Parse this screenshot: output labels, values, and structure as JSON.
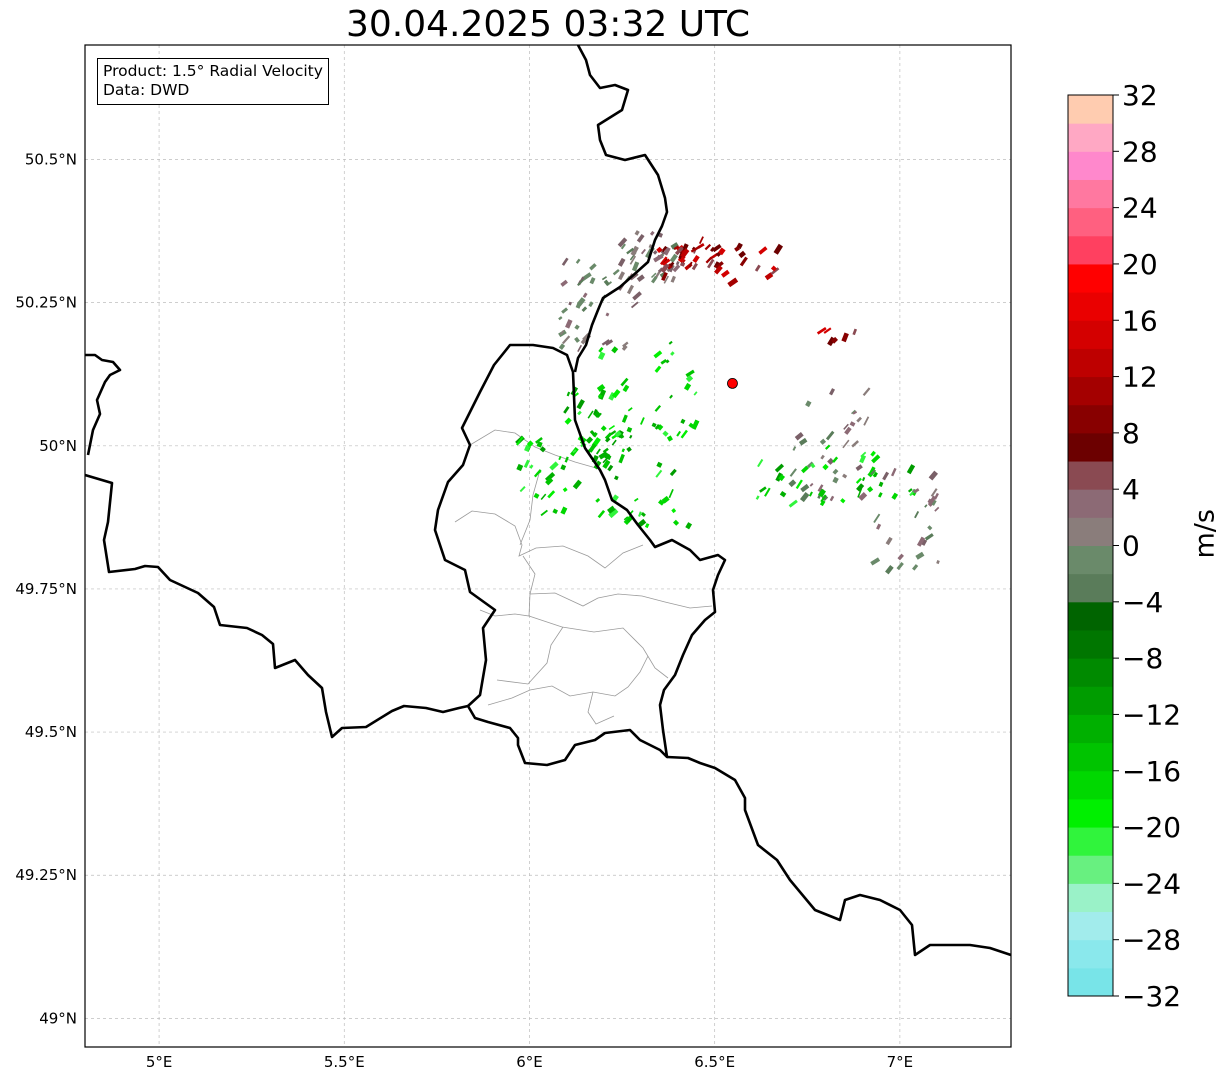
{
  "title": "30.04.2025 03:32 UTC",
  "info_box": {
    "product": "Product: 1.5° Radial Velocity",
    "data": "Data: DWD"
  },
  "map": {
    "lon_range": [
      4.8,
      7.3
    ],
    "lat_range": [
      48.95,
      50.7
    ],
    "lon_ticks": [
      {
        "value": 5.0,
        "label": "5°E"
      },
      {
        "value": 5.5,
        "label": "5.5°E"
      },
      {
        "value": 6.0,
        "label": "6°E"
      },
      {
        "value": 6.5,
        "label": "6.5°E"
      },
      {
        "value": 7.0,
        "label": "7°E"
      }
    ],
    "lat_ticks": [
      {
        "value": 49.0,
        "label": "49°N"
      },
      {
        "value": 49.25,
        "label": "49.25°N"
      },
      {
        "value": 49.5,
        "label": "49.5°N"
      },
      {
        "value": 49.75,
        "label": "49.75°N"
      },
      {
        "value": 50.0,
        "label": "50°N"
      },
      {
        "value": 50.25,
        "label": "50.25°N"
      },
      {
        "value": 50.5,
        "label": "50.5°N"
      }
    ],
    "grid": true,
    "radar_site": {
      "lon": 6.548,
      "lat": 50.109,
      "color": "#ff0000"
    }
  },
  "colorbar": {
    "label": "m/s",
    "vmin": -32,
    "vmax": 32,
    "step": 2,
    "ticks": [
      -32,
      -28,
      -24,
      -20,
      -16,
      -12,
      -8,
      -4,
      0,
      4,
      8,
      12,
      16,
      20,
      24,
      28,
      32
    ],
    "colors": [
      "#78e4e8",
      "#8ae8ec",
      "#a2ecec",
      "#9af2c8",
      "#68f080",
      "#30f43c",
      "#00f000",
      "#00d800",
      "#00c400",
      "#00b000",
      "#009c00",
      "#008a00",
      "#007600",
      "#006400",
      "#5a7c5a",
      "#6a8a6a",
      "#8a7d7b",
      "#8c6a75",
      "#8a4a52",
      "#6c0000",
      "#880000",
      "#a40000",
      "#be0000",
      "#d40000",
      "#ea0000",
      "#ff0000",
      "#ff4060",
      "#ff6080",
      "#ff78a0",
      "#ff88cc",
      "#ffa8c4",
      "#ffccb0"
    ]
  }
}
